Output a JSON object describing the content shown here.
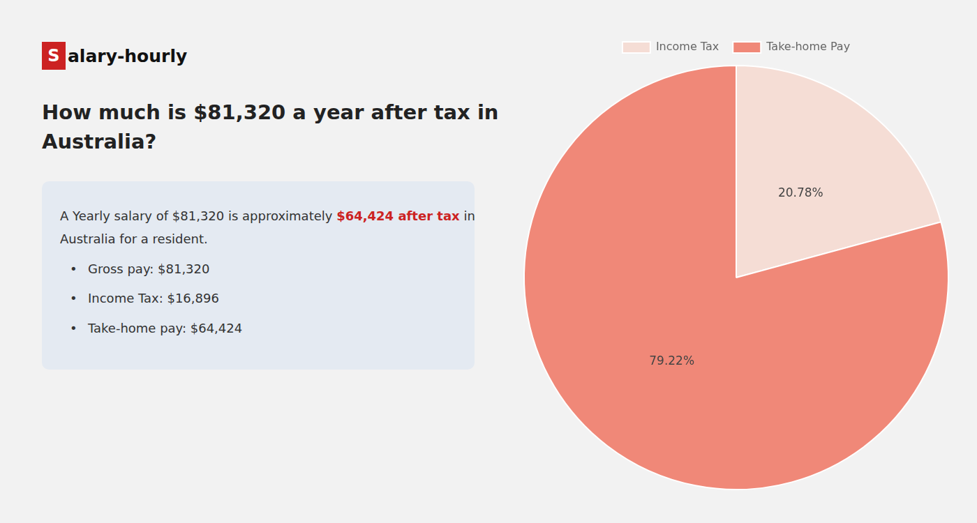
{
  "chart_data": {
    "type": "pie",
    "title": [
      "How much is $81,320 a year after tax in",
      "Australia?"
    ],
    "annotations": [
      [
        {
          "text": "S",
          "color": "#cc2222"
        },
        {
          "text": "alary-hourly"
        }
      ],
      [
        {
          "text": "A Yearly salary of $81,320 is approximately "
        },
        {
          "text": "$64,424 after tax",
          "color": "#cc2222"
        },
        {
          "text": " in"
        }
      ],
      [
        {
          "text": "Australia for a resident."
        }
      ],
      [
        {
          "text": "•"
        },
        {
          "text": "Gross pay: $81,320"
        }
      ],
      [
        {
          "text": "•"
        },
        {
          "text": "Income Tax: $16,896"
        }
      ],
      [
        {
          "text": "•"
        },
        {
          "text": "Take-home pay: $64,424"
        }
      ]
    ],
    "categories": [
      "Income Tax",
      "Take-home Pay"
    ],
    "values": [
      20.78,
      79.22
    ],
    "value_labels": [
      "20.78%",
      "79.22%"
    ],
    "colors": [
      "#f5ddd5",
      "#f08878"
    ],
    "data_labels": true,
    "legend": "top"
  }
}
